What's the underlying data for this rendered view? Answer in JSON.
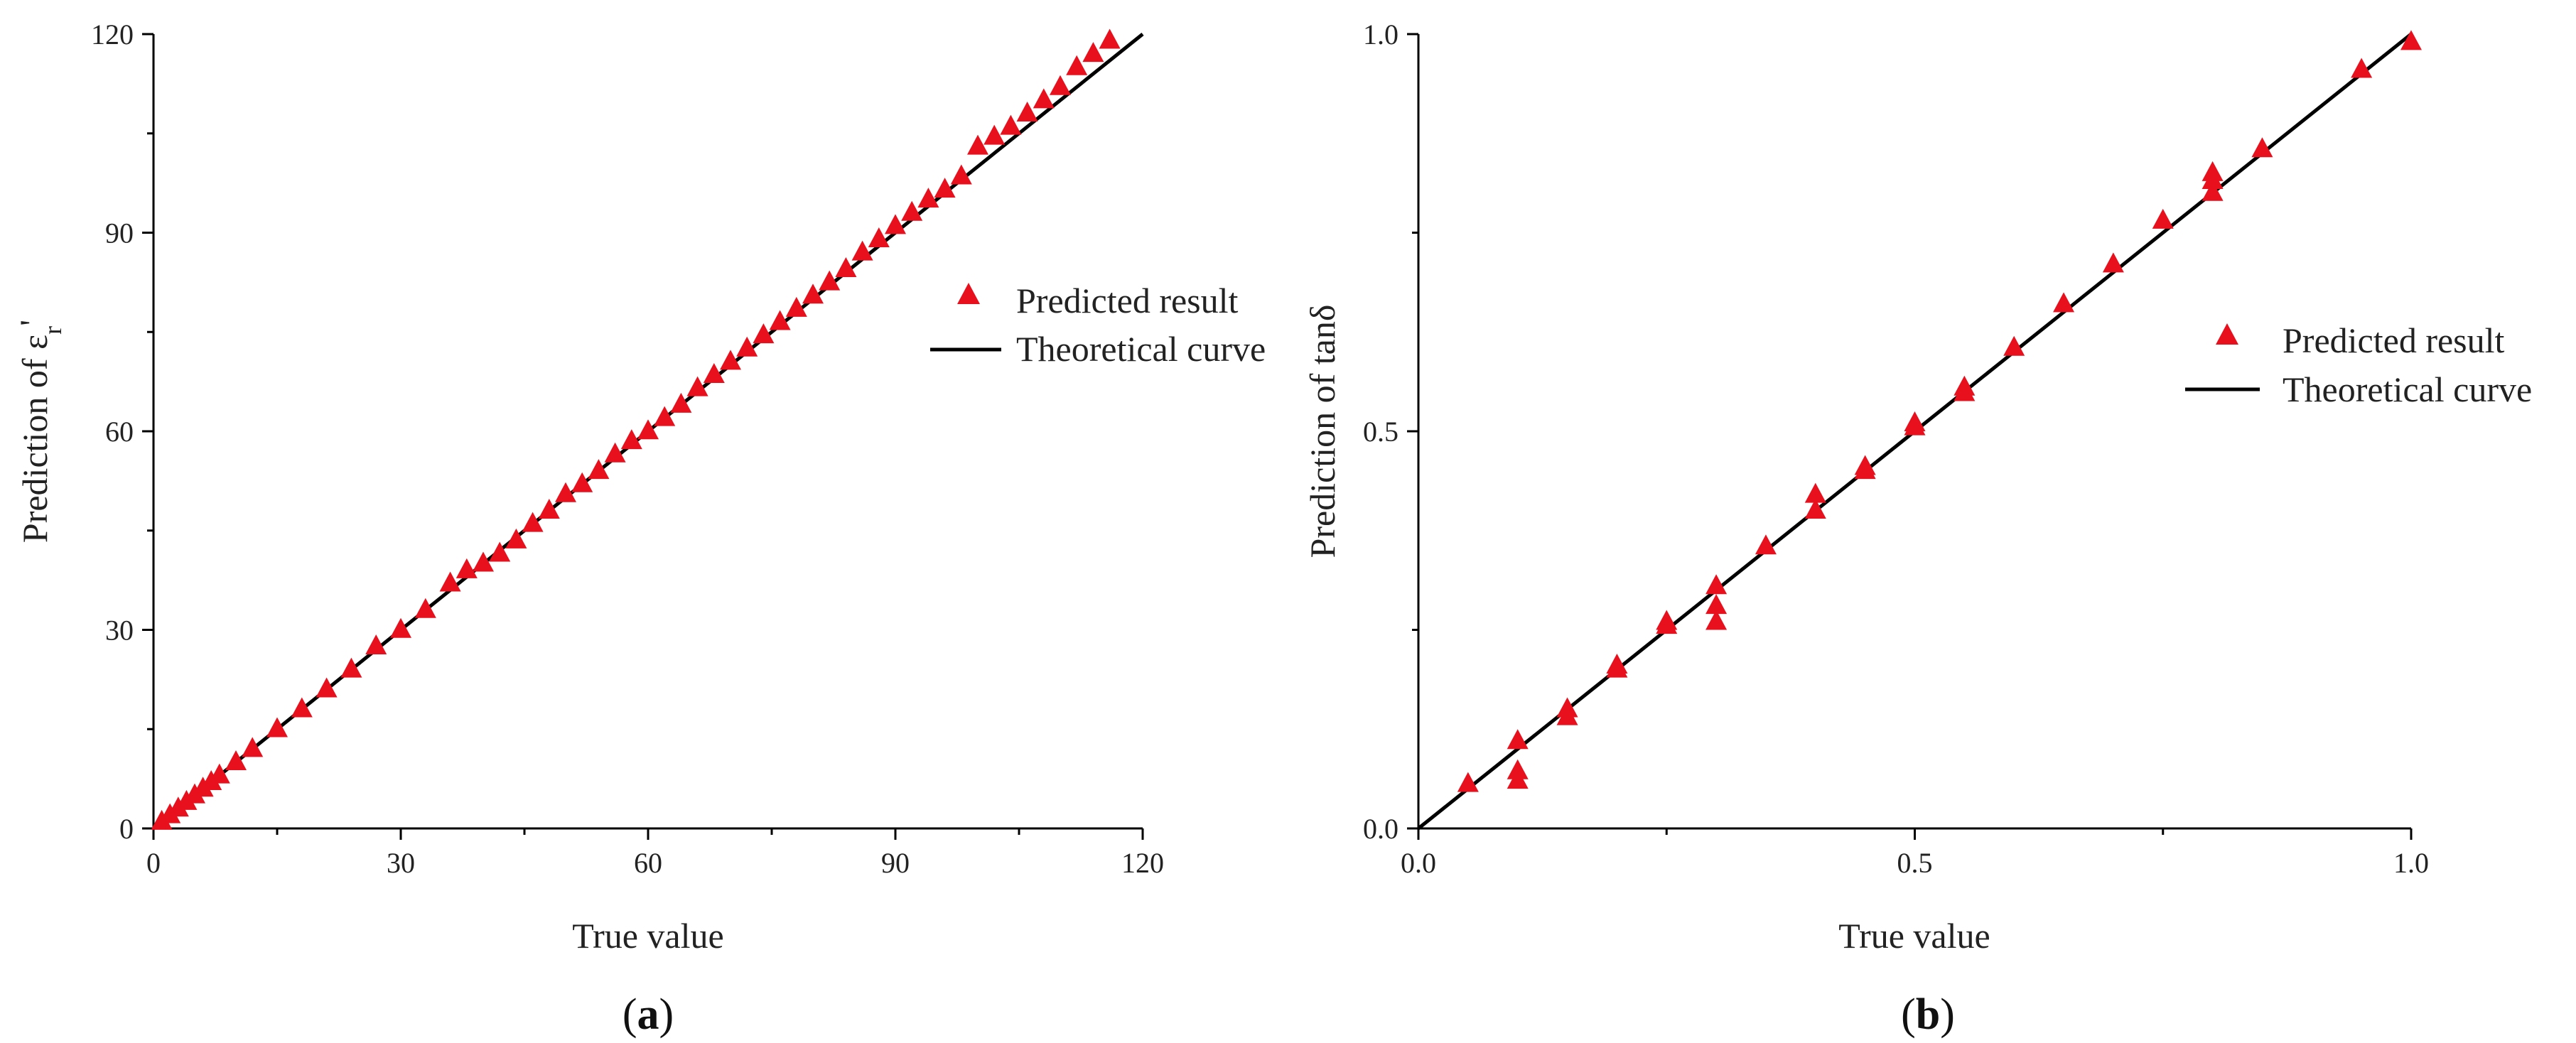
{
  "chart_data": [
    {
      "type": "scatter",
      "panel_label_open": "(",
      "panel_label_letter": "a",
      "panel_label_close": ")",
      "xlabel": "True value",
      "ylabel": "Prediction of εr'",
      "ylabel_main": "Prediction of ε",
      "ylabel_sub": "r",
      "ylabel_prime": "'",
      "xlim": [
        0,
        120
      ],
      "ylim": [
        0,
        120
      ],
      "xticks": [
        0,
        30,
        60,
        90,
        120
      ],
      "yticks": [
        0,
        30,
        60,
        90,
        120
      ],
      "xtick_labels": [
        "0",
        "30",
        "60",
        "90",
        "120"
      ],
      "ytick_labels": [
        "0",
        "30",
        "60",
        "90",
        "120"
      ],
      "legend_position": "right-middle",
      "legend": [
        "Predicted result",
        "Theoretical curve"
      ],
      "colors": {
        "points": "#e8101c",
        "line": "#000000"
      },
      "series": [
        {
          "name": "Predicted result",
          "points": [
            [
              1,
              1
            ],
            [
              2,
              2
            ],
            [
              3,
              3
            ],
            [
              4,
              4
            ],
            [
              5,
              5
            ],
            [
              6,
              6
            ],
            [
              7,
              7
            ],
            [
              8,
              8
            ],
            [
              10,
              10
            ],
            [
              12,
              12
            ],
            [
              15,
              15
            ],
            [
              18,
              18
            ],
            [
              21,
              21
            ],
            [
              24,
              24
            ],
            [
              27,
              27.5
            ],
            [
              30,
              30
            ],
            [
              33,
              33
            ],
            [
              36,
              37
            ],
            [
              38,
              39
            ],
            [
              40,
              40
            ],
            [
              42,
              41.5
            ],
            [
              44,
              43.5
            ],
            [
              46,
              46
            ],
            [
              48,
              48
            ],
            [
              50,
              50.5
            ],
            [
              52,
              52
            ],
            [
              54,
              54
            ],
            [
              56,
              56.5
            ],
            [
              58,
              58.5
            ],
            [
              60,
              60
            ],
            [
              62,
              62
            ],
            [
              64,
              64
            ],
            [
              66,
              66.5
            ],
            [
              68,
              68.5
            ],
            [
              70,
              70.5
            ],
            [
              72,
              72.5
            ],
            [
              74,
              74.5
            ],
            [
              76,
              76.5
            ],
            [
              78,
              78.5
            ],
            [
              80,
              80.5
            ],
            [
              82,
              82.5
            ],
            [
              84,
              84.5
            ],
            [
              86,
              87
            ],
            [
              88,
              89
            ],
            [
              90,
              91
            ],
            [
              92,
              93
            ],
            [
              94,
              95
            ],
            [
              96,
              96.5
            ],
            [
              98,
              98.5
            ],
            [
              100,
              103
            ],
            [
              102,
              104.5
            ],
            [
              104,
              106
            ],
            [
              106,
              108
            ],
            [
              108,
              110
            ],
            [
              110,
              112
            ],
            [
              112,
              115
            ],
            [
              114,
              117
            ],
            [
              116,
              119
            ]
          ]
        },
        {
          "name": "Theoretical curve",
          "line": [
            [
              0,
              0
            ],
            [
              120,
              120
            ]
          ]
        }
      ]
    },
    {
      "type": "scatter",
      "panel_label_open": "(",
      "panel_label_letter": "b",
      "panel_label_close": ")",
      "xlabel": "True value",
      "ylabel": "Prediction of tanδ",
      "xlim": [
        0.0,
        1.0
      ],
      "ylim": [
        0.0,
        1.0
      ],
      "xticks": [
        0.0,
        0.5,
        1.0
      ],
      "yticks": [
        0.0,
        0.5,
        1.0
      ],
      "xtick_labels": [
        "0.0",
        "0.5",
        "1.0"
      ],
      "ytick_labels": [
        "0.0",
        "0.5",
        "1.0"
      ],
      "legend_position": "right-middle",
      "legend": [
        "Predicted result",
        "Theoretical curve"
      ],
      "colors": {
        "points": "#e8101c",
        "line": "#000000"
      },
      "series": [
        {
          "name": "Predicted result",
          "points": [
            [
              0.05,
              0.056
            ],
            [
              0.1,
              0.06
            ],
            [
              0.1,
              0.072
            ],
            [
              0.1,
              0.11
            ],
            [
              0.15,
              0.14
            ],
            [
              0.15,
              0.15
            ],
            [
              0.2,
              0.2
            ],
            [
              0.2,
              0.205
            ],
            [
              0.25,
              0.255
            ],
            [
              0.25,
              0.26
            ],
            [
              0.3,
              0.26
            ],
            [
              0.3,
              0.28
            ],
            [
              0.3,
              0.305
            ],
            [
              0.35,
              0.355
            ],
            [
              0.4,
              0.4
            ],
            [
              0.4,
              0.42
            ],
            [
              0.45,
              0.45
            ],
            [
              0.45,
              0.455
            ],
            [
              0.5,
              0.505
            ],
            [
              0.5,
              0.51
            ],
            [
              0.55,
              0.548
            ],
            [
              0.55,
              0.555
            ],
            [
              0.6,
              0.605
            ],
            [
              0.65,
              0.66
            ],
            [
              0.7,
              0.71
            ],
            [
              0.75,
              0.765
            ],
            [
              0.8,
              0.8
            ],
            [
              0.8,
              0.815
            ],
            [
              0.8,
              0.825
            ],
            [
              0.85,
              0.855
            ],
            [
              0.95,
              0.955
            ],
            [
              1.0,
              0.99
            ]
          ]
        },
        {
          "name": "Theoretical curve",
          "line": [
            [
              0,
              0
            ],
            [
              1,
              1
            ]
          ]
        }
      ]
    }
  ]
}
